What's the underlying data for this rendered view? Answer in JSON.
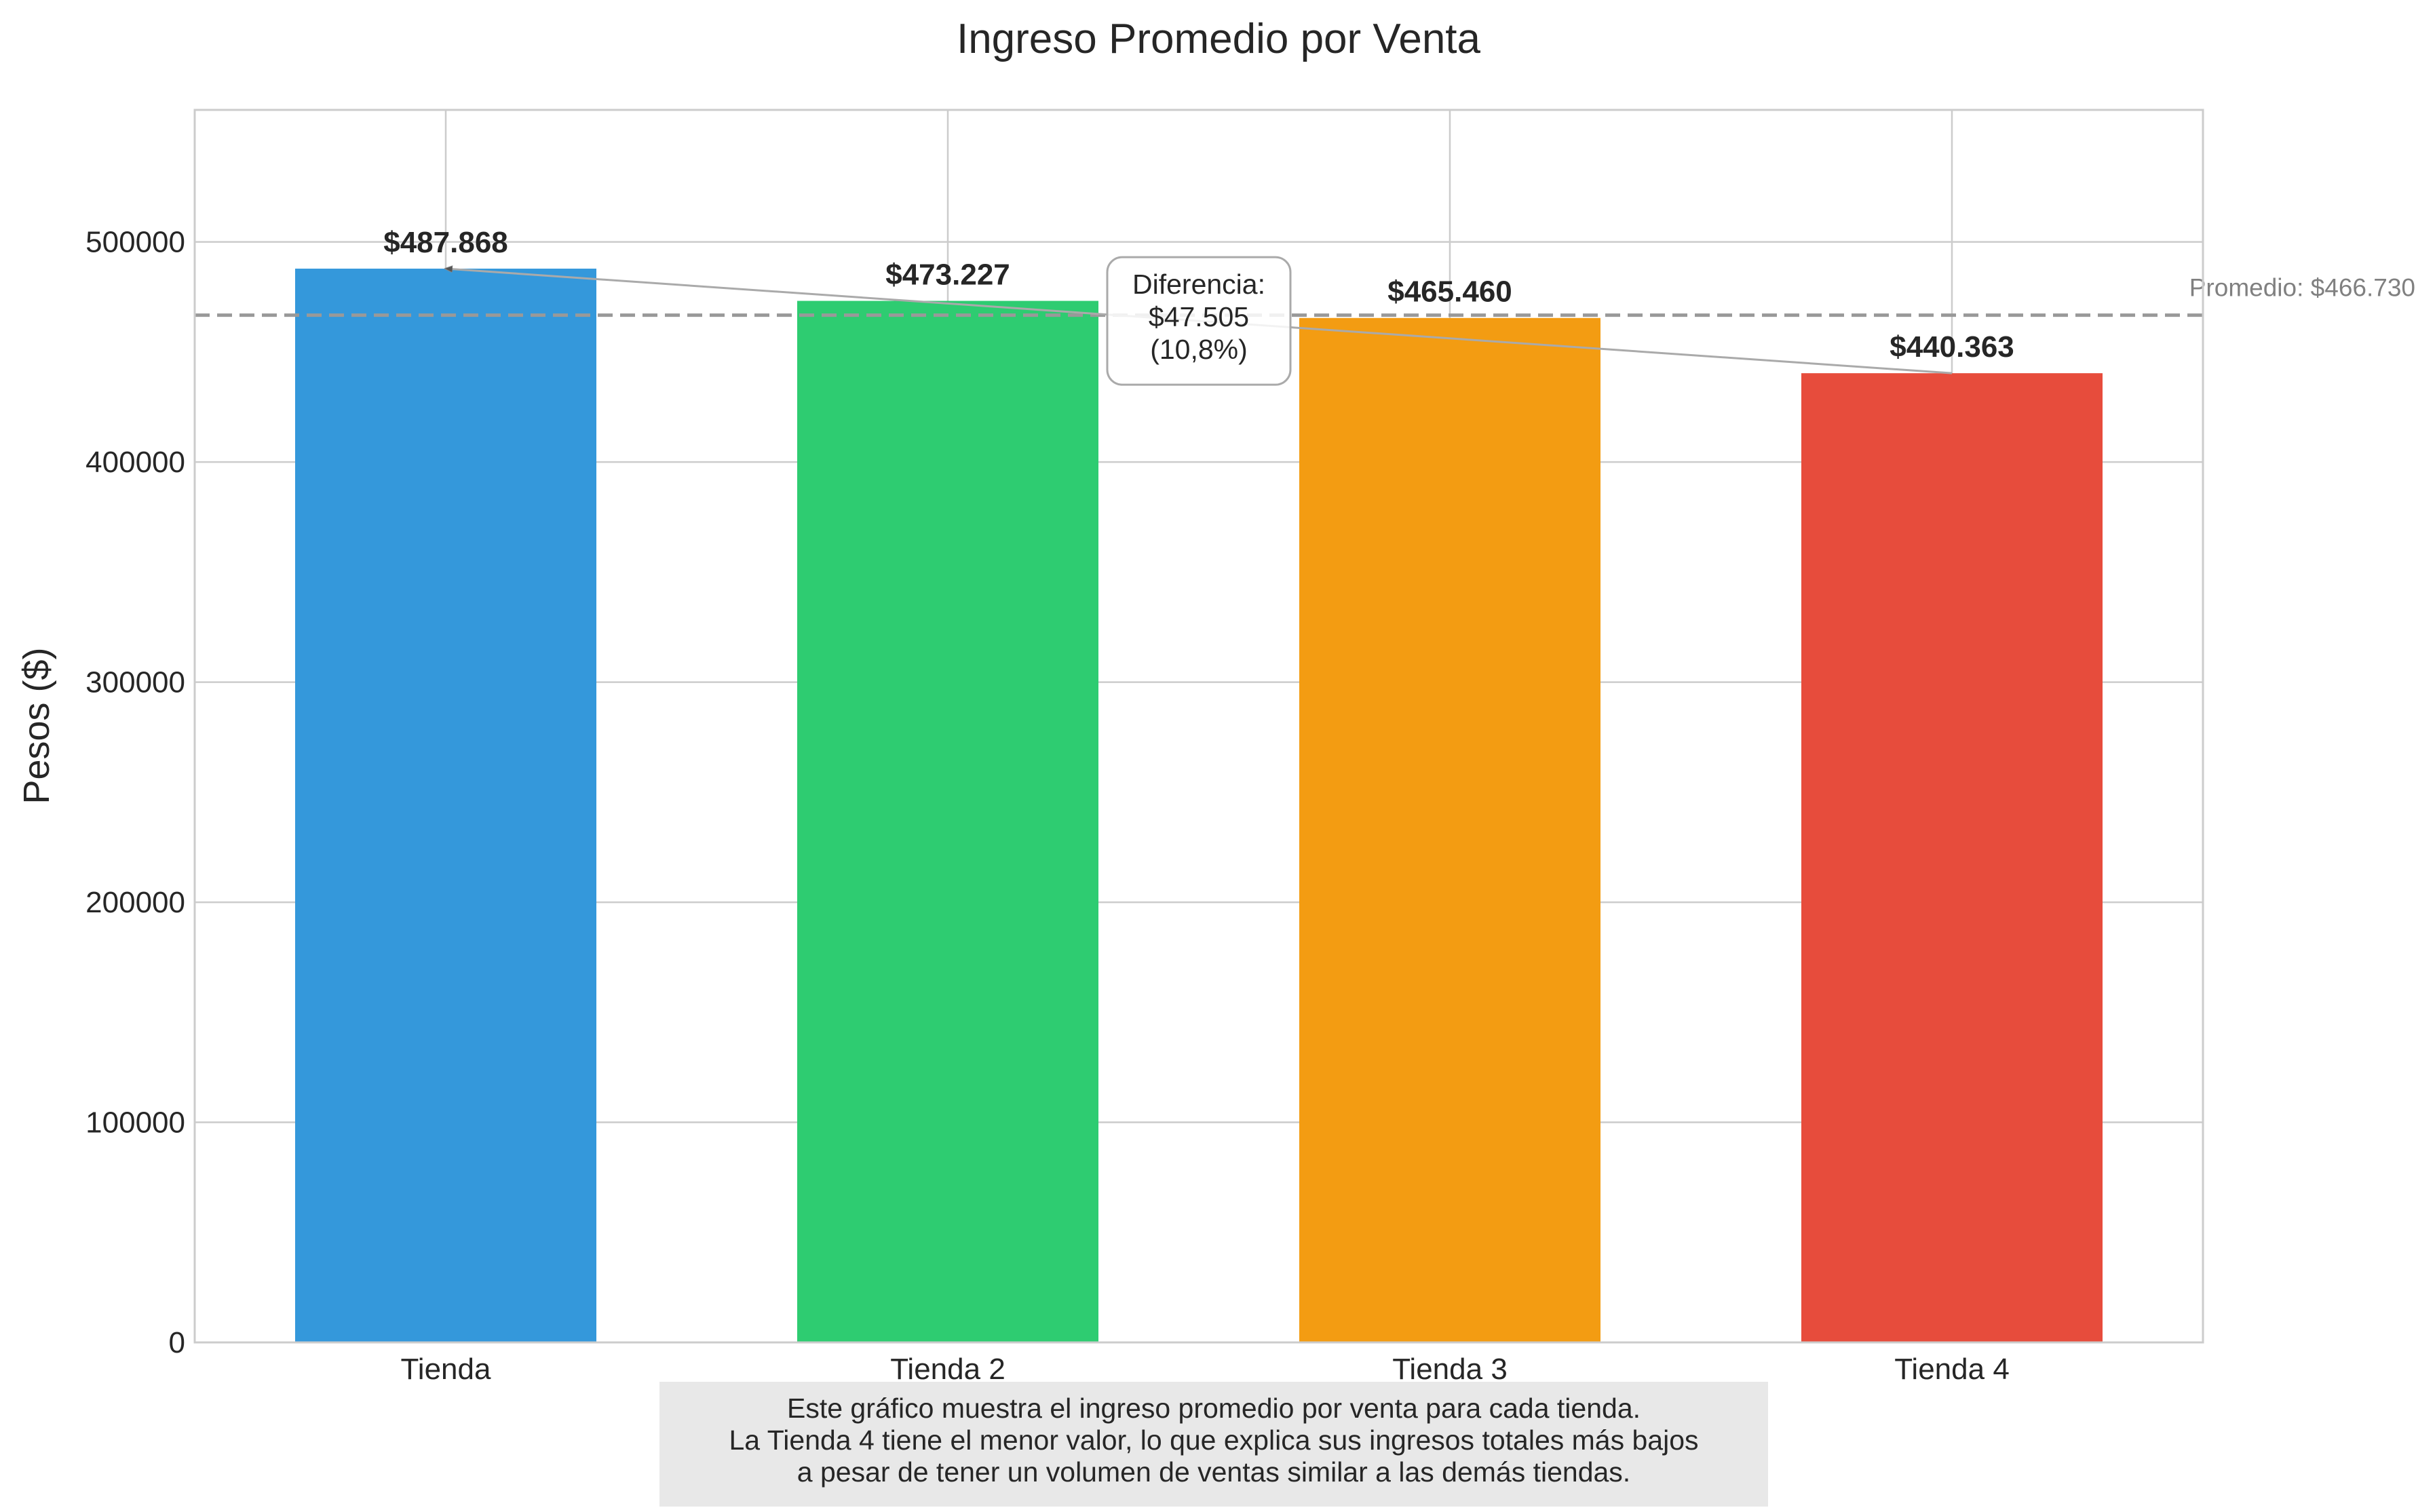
{
  "chart_data": {
    "type": "bar",
    "title": "Ingreso Promedio por Venta",
    "xlabel": "",
    "ylabel": "Pesos ($)",
    "ylim": [
      0,
      560000
    ],
    "yticks": [
      0,
      100000,
      200000,
      300000,
      400000,
      500000
    ],
    "ytick_labels": [
      "0",
      "100000",
      "200000",
      "300000",
      "400000",
      "500000"
    ],
    "grid": true,
    "categories": [
      "Tienda",
      "Tienda 2",
      "Tienda 3",
      "Tienda 4"
    ],
    "values": [
      487868,
      473227,
      465460,
      440363
    ],
    "value_labels": [
      "$487.868",
      "$473.227",
      "$465.460",
      "$440.363"
    ],
    "colors": [
      "#3498db",
      "#2ecc71",
      "#f39c12",
      "#e74c3c"
    ],
    "average": {
      "value": 466730,
      "label": "Promedio: $466.730",
      "color": "#999999"
    },
    "difference_annotation": {
      "lines": [
        "Diferencia:",
        "$47.505",
        "(10,8%)"
      ],
      "from_category": "Tienda 4",
      "to_category": "Tienda"
    },
    "note": {
      "lines": [
        "Este gráfico muestra el ingreso promedio por venta para cada tienda.",
        "La Tienda 4 tiene el menor valor, lo que explica sus ingresos totales más bajos",
        "a pesar de tener un volumen de ventas similar a las demás tiendas."
      ]
    }
  }
}
